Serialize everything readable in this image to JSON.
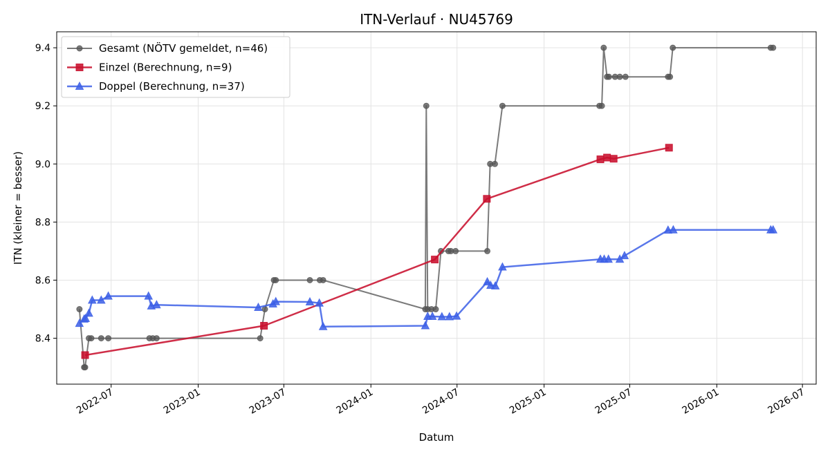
{
  "chart_data": {
    "type": "line",
    "title": "ITN-Verlauf · NU45769",
    "xlabel": "Datum",
    "ylabel": "ITN  (kleiner = besser)",
    "x_axis": "date",
    "xlim": [
      "2022-03-08",
      "2026-07-30"
    ],
    "ylim": [
      8.242,
      9.455
    ],
    "xticks": [
      "2022-07-01",
      "2023-01-01",
      "2023-07-01",
      "2024-01-01",
      "2024-07-01",
      "2025-01-01",
      "2025-07-01",
      "2026-01-01",
      "2026-07-01"
    ],
    "xtick_labels": [
      "2022-07",
      "2023-01",
      "2023-07",
      "2024-01",
      "2024-07",
      "2025-01",
      "2025-07",
      "2026-01",
      "2026-07"
    ],
    "yticks": [
      8.4,
      8.6,
      8.8,
      9.0,
      9.2,
      9.4
    ],
    "ytick_labels": [
      "8.4",
      "8.6",
      "8.8",
      "9.0",
      "9.2",
      "9.4"
    ],
    "grid": true,
    "legend_position": "top-left",
    "series": [
      {
        "name": "Gesamt (NÖTV gemeldet, n=46)",
        "color": "#555555",
        "marker": "circle",
        "points": [
          [
            "2022-04-25",
            8.5
          ],
          [
            "2022-05-05",
            8.3
          ],
          [
            "2022-05-07",
            8.3
          ],
          [
            "2022-05-15",
            8.4
          ],
          [
            "2022-05-20",
            8.4
          ],
          [
            "2022-06-10",
            8.4
          ],
          [
            "2022-06-25",
            8.4
          ],
          [
            "2022-09-20",
            8.4
          ],
          [
            "2022-09-27",
            8.4
          ],
          [
            "2022-10-05",
            8.4
          ],
          [
            "2023-05-12",
            8.4
          ],
          [
            "2023-05-22",
            8.5
          ],
          [
            "2023-06-10",
            8.6
          ],
          [
            "2023-06-14",
            8.6
          ],
          [
            "2023-08-25",
            8.6
          ],
          [
            "2023-09-15",
            8.6
          ],
          [
            "2023-09-22",
            8.6
          ],
          [
            "2024-04-25",
            8.5
          ],
          [
            "2024-04-27",
            9.2
          ],
          [
            "2024-04-30",
            8.5
          ],
          [
            "2024-05-08",
            8.5
          ],
          [
            "2024-05-17",
            8.5
          ],
          [
            "2024-05-28",
            8.7
          ],
          [
            "2024-06-13",
            8.7
          ],
          [
            "2024-06-18",
            8.7
          ],
          [
            "2024-06-28",
            8.7
          ],
          [
            "2024-09-03",
            8.7
          ],
          [
            "2024-09-09",
            9.0
          ],
          [
            "2024-09-19",
            9.0
          ],
          [
            "2024-10-05",
            9.2
          ],
          [
            "2025-04-28",
            9.2
          ],
          [
            "2025-05-03",
            9.2
          ],
          [
            "2025-05-07",
            9.4
          ],
          [
            "2025-05-14",
            9.3
          ],
          [
            "2025-05-18",
            9.3
          ],
          [
            "2025-05-31",
            9.3
          ],
          [
            "2025-06-10",
            9.3
          ],
          [
            "2025-06-22",
            9.3
          ],
          [
            "2025-09-20",
            9.3
          ],
          [
            "2025-09-24",
            9.3
          ],
          [
            "2025-09-30",
            9.4
          ],
          [
            "2026-04-25",
            9.4
          ],
          [
            "2026-04-30",
            9.4
          ]
        ]
      },
      {
        "name": "Einzel (Berechnung, n=9)",
        "color": "#c8102e",
        "marker": "square",
        "points": [
          [
            "2022-05-07",
            8.342
          ],
          [
            "2023-05-20",
            8.443
          ],
          [
            "2024-05-15",
            8.671
          ],
          [
            "2024-09-02",
            8.88
          ],
          [
            "2025-04-30",
            9.016
          ],
          [
            "2025-05-14",
            9.022
          ],
          [
            "2025-05-28",
            9.018
          ],
          [
            "2025-09-22",
            9.056
          ]
        ]
      },
      {
        "name": "Doppel (Berechnung, n=37)",
        "color": "#3c5fe6",
        "marker": "triangle",
        "points": [
          [
            "2022-04-25",
            8.451
          ],
          [
            "2022-05-05",
            8.466
          ],
          [
            "2022-05-08",
            8.468
          ],
          [
            "2022-05-15",
            8.486
          ],
          [
            "2022-05-22",
            8.531
          ],
          [
            "2022-06-10",
            8.531
          ],
          [
            "2022-06-25",
            8.545
          ],
          [
            "2022-09-18",
            8.545
          ],
          [
            "2022-09-24",
            8.511
          ],
          [
            "2022-10-05",
            8.515
          ],
          [
            "2023-05-08",
            8.506
          ],
          [
            "2023-06-08",
            8.518
          ],
          [
            "2023-06-14",
            8.526
          ],
          [
            "2023-08-25",
            8.525
          ],
          [
            "2023-09-14",
            8.521
          ],
          [
            "2023-09-22",
            8.44
          ],
          [
            "2024-04-25",
            8.443
          ],
          [
            "2024-04-30",
            8.475
          ],
          [
            "2024-05-10",
            8.475
          ],
          [
            "2024-05-30",
            8.474
          ],
          [
            "2024-06-15",
            8.474
          ],
          [
            "2024-06-30",
            8.476
          ],
          [
            "2024-09-03",
            8.594
          ],
          [
            "2024-09-10",
            8.582
          ],
          [
            "2024-09-20",
            8.58
          ],
          [
            "2024-10-05",
            8.645
          ],
          [
            "2025-04-30",
            8.672
          ],
          [
            "2025-05-08",
            8.672
          ],
          [
            "2025-05-17",
            8.672
          ],
          [
            "2025-06-10",
            8.672
          ],
          [
            "2025-06-20",
            8.684
          ],
          [
            "2025-09-20",
            8.772
          ],
          [
            "2025-10-01",
            8.773
          ],
          [
            "2026-04-25",
            8.773
          ],
          [
            "2026-04-30",
            8.773
          ]
        ]
      }
    ]
  }
}
